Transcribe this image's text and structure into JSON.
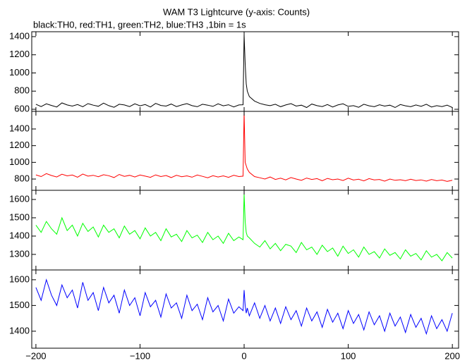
{
  "chart_data": [
    {
      "type": "line",
      "title": "WAM T3 Lightcurve (y-axis: Counts)",
      "subtitle": "black:TH0, red:TH1, green:TH2, blue:TH3 ,1bin = 1s",
      "xlim": [
        -204,
        206
      ],
      "ylim": [
        577,
        1454
      ],
      "yticks": [
        600,
        800,
        1000,
        1200,
        1400
      ],
      "x": [
        -200,
        -195,
        -190,
        -185,
        -180,
        -175,
        -170,
        -165,
        -160,
        -155,
        -150,
        -145,
        -140,
        -135,
        -130,
        -125,
        -120,
        -115,
        -110,
        -105,
        -100,
        -95,
        -90,
        -85,
        -80,
        -75,
        -70,
        -65,
        -60,
        -55,
        -50,
        -45,
        -40,
        -35,
        -30,
        -25,
        -20,
        -15,
        -10,
        -5,
        -1,
        0,
        1,
        2,
        3,
        5,
        10,
        15,
        20,
        25,
        30,
        35,
        40,
        45,
        50,
        55,
        60,
        65,
        70,
        75,
        80,
        85,
        90,
        95,
        100,
        105,
        110,
        115,
        120,
        125,
        130,
        135,
        140,
        145,
        150,
        155,
        160,
        165,
        170,
        175,
        180,
        185,
        190,
        195,
        200
      ],
      "series": [
        {
          "color": "#000000",
          "values": [
            655,
            630,
            660,
            642,
            625,
            670,
            648,
            635,
            652,
            628,
            662,
            645,
            633,
            668,
            640,
            622,
            655,
            648,
            630,
            660,
            638,
            652,
            625,
            665,
            642,
            635,
            658,
            630,
            648,
            662,
            640,
            628,
            655,
            645,
            632,
            660,
            638,
            650,
            626,
            648,
            650,
            1420,
            1100,
            880,
            800,
            740,
            690,
            665,
            650,
            640,
            655,
            628,
            648,
            662,
            635,
            645,
            620,
            658,
            640,
            630,
            652,
            625,
            648,
            660,
            632,
            640,
            622,
            655,
            638,
            628,
            650,
            635,
            645,
            620,
            652,
            638,
            628,
            648,
            632,
            655,
            625,
            640,
            630,
            645,
            620
          ]
        }
      ]
    },
    {
      "type": "line",
      "xlim": [
        -204,
        206
      ],
      "ylim": [
        665,
        1611
      ],
      "yticks": [
        800,
        1000,
        1200,
        1400
      ],
      "x": [
        -200,
        -195,
        -190,
        -185,
        -180,
        -175,
        -170,
        -165,
        -160,
        -155,
        -150,
        -145,
        -140,
        -135,
        -130,
        -125,
        -120,
        -115,
        -110,
        -105,
        -100,
        -95,
        -90,
        -85,
        -80,
        -75,
        -70,
        -65,
        -60,
        -55,
        -50,
        -45,
        -40,
        -35,
        -30,
        -25,
        -20,
        -15,
        -10,
        -5,
        -1,
        0,
        1,
        2,
        3,
        5,
        10,
        15,
        20,
        25,
        30,
        35,
        40,
        45,
        50,
        55,
        60,
        65,
        70,
        75,
        80,
        85,
        90,
        95,
        100,
        105,
        110,
        115,
        120,
        125,
        130,
        135,
        140,
        145,
        150,
        155,
        160,
        165,
        170,
        175,
        180,
        185,
        190,
        195,
        200
      ],
      "series": [
        {
          "color": "#ff0000",
          "values": [
            850,
            830,
            865,
            842,
            825,
            858,
            838,
            848,
            822,
            860,
            835,
            845,
            828,
            852,
            840,
            818,
            855,
            832,
            845,
            825,
            848,
            835,
            820,
            850,
            830,
            842,
            818,
            845,
            828,
            838,
            822,
            848,
            832,
            815,
            840,
            825,
            838,
            820,
            845,
            830,
            835,
            1600,
            1000,
            960,
            920,
            880,
            830,
            815,
            800,
            825,
            795,
            810,
            790,
            818,
            800,
            785,
            812,
            795,
            805,
            780,
            808,
            792,
            800,
            782,
            810,
            788,
            798,
            778,
            805,
            790,
            795,
            775,
            800,
            785,
            792,
            780,
            798,
            782,
            790,
            775,
            795,
            780,
            788,
            772,
            785
          ]
        }
      ]
    },
    {
      "type": "line",
      "xlim": [
        -204,
        206
      ],
      "ylim": [
        1215,
        1650
      ],
      "yticks": [
        1300,
        1400,
        1500,
        1600
      ],
      "x": [
        -200,
        -195,
        -190,
        -185,
        -180,
        -175,
        -170,
        -165,
        -160,
        -155,
        -150,
        -145,
        -140,
        -135,
        -130,
        -125,
        -120,
        -115,
        -110,
        -105,
        -100,
        -95,
        -90,
        -85,
        -80,
        -75,
        -70,
        -65,
        -60,
        -55,
        -50,
        -45,
        -40,
        -35,
        -30,
        -25,
        -20,
        -15,
        -10,
        -5,
        -1,
        0,
        1,
        2,
        3,
        5,
        10,
        15,
        20,
        25,
        30,
        35,
        40,
        45,
        50,
        55,
        60,
        65,
        70,
        75,
        80,
        85,
        90,
        95,
        100,
        105,
        110,
        115,
        120,
        125,
        130,
        135,
        140,
        145,
        150,
        155,
        160,
        165,
        170,
        175,
        180,
        185,
        190,
        195,
        200
      ],
      "series": [
        {
          "color": "#00ff00",
          "values": [
            1460,
            1420,
            1480,
            1440,
            1410,
            1500,
            1430,
            1460,
            1400,
            1470,
            1425,
            1450,
            1395,
            1460,
            1420,
            1440,
            1390,
            1455,
            1410,
            1430,
            1385,
            1445,
            1400,
            1420,
            1375,
            1440,
            1395,
            1410,
            1370,
            1430,
            1390,
            1405,
            1365,
            1420,
            1380,
            1400,
            1360,
            1415,
            1375,
            1395,
            1380,
            1630,
            1480,
            1420,
            1400,
            1390,
            1360,
            1340,
            1375,
            1330,
            1360,
            1320,
            1355,
            1345,
            1310,
            1365,
            1325,
            1340,
            1300,
            1350,
            1315,
            1335,
            1290,
            1345,
            1305,
            1325,
            1285,
            1340,
            1300,
            1315,
            1280,
            1330,
            1295,
            1310,
            1275,
            1325,
            1290,
            1305,
            1270,
            1320,
            1285,
            1300,
            1265,
            1310,
            1280
          ]
        }
      ]
    },
    {
      "type": "line",
      "xlim": [
        -204,
        206
      ],
      "ylim": [
        1334,
        1638
      ],
      "yticks": [
        1400,
        1500,
        1600
      ],
      "xticks": [
        {
          "value": -200,
          "label": "−200"
        },
        {
          "value": -100,
          "label": "−100"
        },
        0,
        100,
        200
      ],
      "x": [
        -200,
        -195,
        -190,
        -185,
        -180,
        -175,
        -170,
        -165,
        -160,
        -155,
        -150,
        -145,
        -140,
        -135,
        -130,
        -125,
        -120,
        -115,
        -110,
        -105,
        -100,
        -95,
        -90,
        -85,
        -80,
        -75,
        -70,
        -65,
        -60,
        -55,
        -50,
        -45,
        -40,
        -35,
        -30,
        -25,
        -20,
        -15,
        -10,
        -5,
        -1,
        0,
        1,
        2,
        3,
        5,
        10,
        15,
        20,
        25,
        30,
        35,
        40,
        45,
        50,
        55,
        60,
        65,
        70,
        75,
        80,
        85,
        90,
        95,
        100,
        105,
        110,
        115,
        120,
        125,
        130,
        135,
        140,
        145,
        150,
        155,
        160,
        165,
        170,
        175,
        180,
        185,
        190,
        195,
        200
      ],
      "series": [
        {
          "color": "#0000ff",
          "values": [
            1570,
            1520,
            1600,
            1540,
            1500,
            1580,
            1530,
            1560,
            1490,
            1590,
            1520,
            1550,
            1480,
            1570,
            1510,
            1540,
            1470,
            1560,
            1500,
            1530,
            1460,
            1550,
            1495,
            1520,
            1455,
            1545,
            1490,
            1510,
            1450,
            1540,
            1480,
            1505,
            1445,
            1530,
            1475,
            1500,
            1440,
            1525,
            1470,
            1495,
            1480,
            1560,
            1500,
            1470,
            1490,
            1460,
            1510,
            1450,
            1500,
            1440,
            1490,
            1430,
            1495,
            1445,
            1480,
            1420,
            1490,
            1440,
            1475,
            1415,
            1485,
            1435,
            1470,
            1410,
            1480,
            1430,
            1465,
            1405,
            1475,
            1425,
            1460,
            1400,
            1470,
            1420,
            1455,
            1395,
            1465,
            1415,
            1450,
            1390,
            1460,
            1410,
            1445,
            1400,
            1470
          ]
        }
      ]
    }
  ]
}
